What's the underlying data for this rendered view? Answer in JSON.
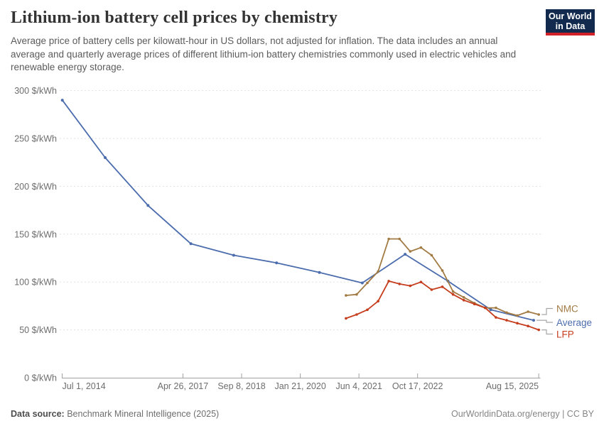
{
  "header": {
    "title": "Lithium-ion battery cell prices by chemistry",
    "subtitle": "Average price of battery cells per kilowatt-hour in US dollars, not adjusted for inflation. The data includes an annual average and quarterly average prices of different lithium-ion battery chemistries commonly used in electric vehicles and renewable energy storage.",
    "logo": {
      "line1": "Our World",
      "line2": "in Data",
      "bg_color": "#122a4e",
      "bar_color": "#cf2127"
    }
  },
  "footer": {
    "source_label": "Data source:",
    "source_value": "Benchmark Mineral Intelligence (2025)",
    "site": "OurWorldinData.org/energy",
    "divider": " | ",
    "license": "CC BY"
  },
  "chart_data": {
    "type": "line",
    "title": "Lithium-ion battery cell prices by chemistry",
    "unit": "$/kWh",
    "grid": true,
    "legend_position": "right",
    "ylim": [
      0,
      300
    ],
    "xlim": [
      2014.497,
      2025.65
    ],
    "y_ticks": [
      0,
      50,
      100,
      150,
      200,
      250,
      300
    ],
    "y_tick_suffix": " $/kWh",
    "x_ticks": [
      {
        "t": 2014.497,
        "label": "Jul 1, 2014",
        "anchor": "start"
      },
      {
        "t": 2017.315,
        "label": "Apr 26, 2017",
        "anchor": "middle"
      },
      {
        "t": 2018.685,
        "label": "Sep 8, 2018",
        "anchor": "middle"
      },
      {
        "t": 2020.055,
        "label": "Jan 21, 2020",
        "anchor": "middle"
      },
      {
        "t": 2021.423,
        "label": "Jun 4, 2021",
        "anchor": "middle"
      },
      {
        "t": 2022.792,
        "label": "Oct 17, 2022",
        "anchor": "middle"
      },
      {
        "t": 2025.619,
        "label": "Aug 15, 2025",
        "anchor": "end"
      }
    ],
    "series": [
      {
        "name": "Average",
        "color": "#4c6dad",
        "cadence": "annual",
        "x": [
          2014.5,
          2015.5,
          2016.5,
          2017.5,
          2018.5,
          2019.5,
          2020.5,
          2021.5,
          2022.5,
          2023.5,
          2024.5,
          2025.5
        ],
        "values": [
          290,
          230,
          180,
          140,
          128,
          120,
          110,
          99,
          129,
          101,
          71,
          60
        ]
      },
      {
        "name": "NMC",
        "color": "#a27b44",
        "cadence": "quarterly",
        "x": [
          2021.12,
          2021.37,
          2021.62,
          2021.87,
          2022.12,
          2022.37,
          2022.62,
          2022.87,
          2023.12,
          2023.37,
          2023.62,
          2023.87,
          2024.12,
          2024.37,
          2024.62,
          2024.87,
          2025.12,
          2025.37,
          2025.62
        ],
        "values": [
          86,
          87,
          99,
          111,
          145,
          145,
          132,
          136,
          128,
          112,
          90,
          84,
          78,
          73,
          73,
          68,
          65,
          69,
          66
        ]
      },
      {
        "name": "LFP",
        "color": "#c63d1e",
        "cadence": "quarterly",
        "x": [
          2021.12,
          2021.37,
          2021.62,
          2021.87,
          2022.12,
          2022.37,
          2022.62,
          2022.87,
          2023.12,
          2023.37,
          2023.62,
          2023.87,
          2024.12,
          2024.37,
          2024.62,
          2024.87,
          2025.12,
          2025.37,
          2025.62
        ],
        "values": [
          62,
          66,
          71,
          80,
          101,
          98,
          96,
          100,
          92,
          95,
          87,
          81,
          77,
          73,
          63,
          60,
          57,
          54,
          50
        ]
      }
    ],
    "legend": [
      {
        "series": "NMC",
        "label_center_y": 434.5
      },
      {
        "series": "Average",
        "label_center_y": 454.0
      },
      {
        "series": "LFP",
        "label_center_y": 470.5
      }
    ]
  }
}
